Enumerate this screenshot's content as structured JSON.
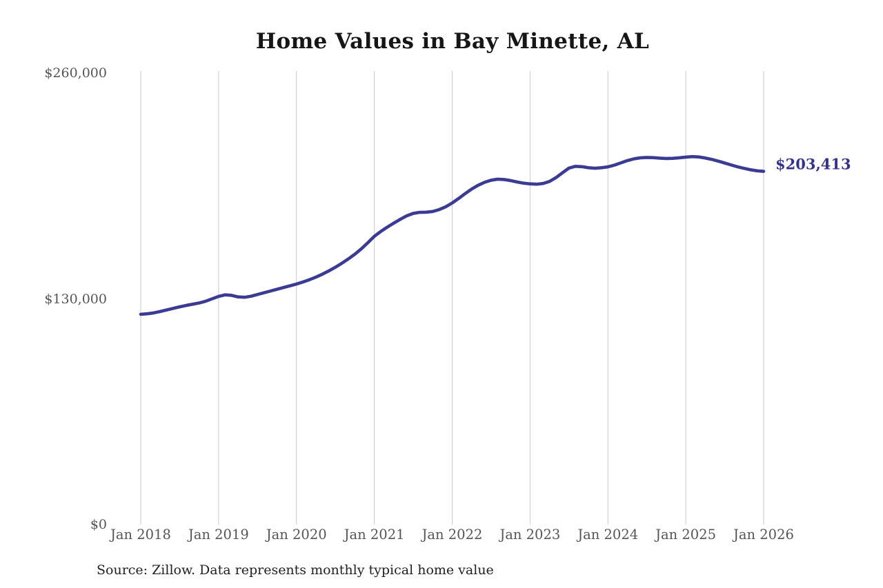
{
  "title": "Home Values in Bay Minette, AL",
  "end_label": "$203,413",
  "source_note": "Source: Zillow. Data represents monthly typical home value",
  "colors": {
    "line": "#3b3b93",
    "end_label_text": "#33338b",
    "grid": "#c9c9c9",
    "axis_text": "#555555",
    "title_text": "#161616",
    "source_text": "#212121"
  },
  "chart_data": {
    "type": "line",
    "title": "Home Values in Bay Minette, AL",
    "xlabel": "",
    "ylabel": "",
    "ylim": [
      0,
      260000
    ],
    "grid": "vertical-yearly-gridlines",
    "legend": false,
    "frequency": "monthly",
    "x_start": "2018-01",
    "x_end": "2026-01",
    "x_tick_labels": [
      "Jan 2018",
      "Jan 2019",
      "Jan 2020",
      "Jan 2021",
      "Jan 2022",
      "Jan 2023",
      "Jan 2024",
      "Jan 2025",
      "Jan 2026"
    ],
    "y_ticks": [
      {
        "label": "$0",
        "value": 0
      },
      {
        "label": "$130,000",
        "value": 130000
      },
      {
        "label": "$260,000",
        "value": 260000
      }
    ],
    "last_value": 203413,
    "annotation": "$203,413",
    "series": [
      {
        "name": "Typical home value",
        "values": [
          121100,
          121400,
          121900,
          122700,
          123600,
          124500,
          125400,
          126200,
          126900,
          127600,
          128600,
          130000,
          131400,
          132300,
          132000,
          131100,
          130900,
          131500,
          132500,
          133500,
          134500,
          135500,
          136500,
          137500,
          138500,
          139700,
          141000,
          142500,
          144200,
          146100,
          148200,
          150500,
          153000,
          155700,
          158800,
          162300,
          166000,
          168800,
          171300,
          173600,
          175800,
          177800,
          179200,
          179800,
          179900,
          180300,
          181400,
          183000,
          185200,
          187800,
          190600,
          193200,
          195400,
          197100,
          198300,
          198900,
          198700,
          198100,
          197300,
          196600,
          196200,
          196000,
          196400,
          197600,
          199800,
          202600,
          205300,
          206300,
          206100,
          205500,
          205200,
          205500,
          206000,
          207000,
          208300,
          209600,
          210600,
          211200,
          211400,
          211300,
          211000,
          210800,
          210900,
          211200,
          211600,
          211900,
          211700,
          211100,
          210300,
          209300,
          208200,
          207100,
          206000,
          205100,
          204300,
          203700,
          203413
        ]
      }
    ]
  }
}
